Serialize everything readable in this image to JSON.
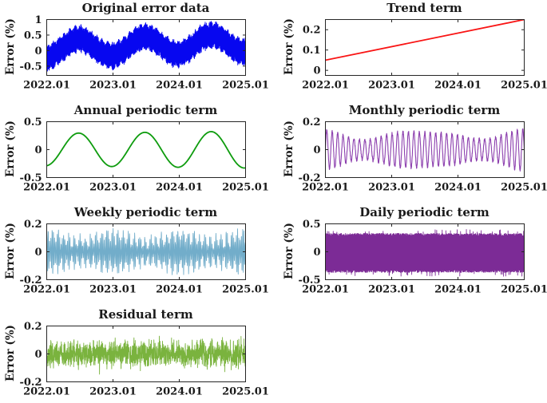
{
  "figure": {
    "ylabel": "Error (%)",
    "axis_color": "#262626",
    "text_color": "#1a1a1a",
    "background": "#ffffff",
    "x_tick_labels": [
      "2022.01",
      "2023.01",
      "2024.01",
      "2025.01"
    ]
  },
  "chart_data": [
    {
      "type": "line",
      "title": "Original error data",
      "ylabel": "Error (%)",
      "color": "#0707f0",
      "xlim": [
        2022.01,
        2025.01
      ],
      "ylim": [
        -0.8,
        1.0
      ],
      "xticks": {
        "labels": [
          "2022.01",
          "2023.01",
          "2024.01",
          "2025.01"
        ],
        "values": [
          2022.01,
          2023.01,
          2024.01,
          2025.01
        ]
      },
      "yticks": [
        {
          "label": "1",
          "v": 1
        },
        {
          "label": "0.5",
          "v": 0.5
        },
        {
          "label": "0",
          "v": 0
        },
        {
          "label": "-0.5",
          "v": -0.5
        }
      ],
      "grid": false,
      "legend": null,
      "description": "Annual sinusoid (about +/-0.3) plus dense high-frequency band (+/-0.3 to 0.45) on a rising mean 0.05 to 0.25; envelope peaks near 1.0 mid-year, lows near -0.75 each January",
      "signal": {
        "kind": "sum-zigzag",
        "samples": 1400,
        "seed": 7,
        "trend": [
          0.05,
          0.25
        ],
        "annual_amp": 0.29,
        "annual_phase": 0.23,
        "e0": 0.28,
        "e1": 0.14,
        "emod": 0.05
      }
    },
    {
      "type": "line",
      "title": "Trend term",
      "ylabel": "Error (%)",
      "color": "#f91414",
      "xlim": [
        2022.01,
        2025.01
      ],
      "ylim": [
        -0.025,
        0.25
      ],
      "xticks": {
        "labels": [
          "2022.01",
          "2023.01",
          "2024.01",
          "2025.01"
        ],
        "values": [
          2022.01,
          2023.01,
          2024.01,
          2025.01
        ]
      },
      "yticks": [
        {
          "label": "0.2",
          "v": 0.2
        },
        {
          "label": "0.1",
          "v": 0.1
        },
        {
          "label": "0",
          "v": 0
        }
      ],
      "grid": false,
      "legend": null,
      "description": "Straight line rising from about 0.05 at 2022.01 to about 0.25 at 2025.01",
      "signal": {
        "kind": "linear",
        "samples": 2,
        "y0": 0.05,
        "y1": 0.25
      }
    },
    {
      "type": "line",
      "title": "Annual periodic term",
      "ylabel": "Error (%)",
      "color": "#0e9c0e",
      "xlim": [
        2022.01,
        2025.01
      ],
      "ylim": [
        -0.5,
        0.5
      ],
      "xticks": {
        "labels": [
          "2022.01",
          "2023.01",
          "2024.01",
          "2025.01"
        ],
        "values": [
          2022.01,
          2023.01,
          2024.01,
          2025.01
        ]
      },
      "yticks": [
        {
          "label": "0.5",
          "v": 0.5
        },
        {
          "label": "0",
          "v": 0
        },
        {
          "label": "-0.5",
          "v": -0.5
        }
      ],
      "grid": false,
      "legend": null,
      "description": "Smooth one-year-period sine, peaks about +0.27/+0.30/+0.32 mid-year, troughs about -0.33 each January, starting near -0.3",
      "signal": {
        "kind": "sine",
        "samples": 400,
        "amp": 0.29,
        "amp_growth": 0.013,
        "phase": 0.23,
        "freq": 1
      }
    },
    {
      "type": "line",
      "title": "Monthly periodic term",
      "ylabel": "Error (%)",
      "color": "#8c3fae",
      "xlim": [
        2022.01,
        2025.01
      ],
      "ylim": [
        -0.2,
        0.2
      ],
      "xticks": {
        "labels": [
          "2022.01",
          "2023.01",
          "2024.01",
          "2025.01"
        ],
        "values": [
          2022.01,
          2023.01,
          2024.01,
          2025.01
        ]
      },
      "yticks": [
        {
          "label": "0.2",
          "v": 0.2
        },
        {
          "label": "0",
          "v": 0
        },
        {
          "label": "-0.2",
          "v": -0.2
        }
      ],
      "grid": false,
      "legend": null,
      "description": "About 36 oscillations over 3 years (monthly period); amplitude modulated between roughly 0.08 and 0.15, largest near 2022.7 and 2024.3",
      "signal": {
        "kind": "am-sine",
        "samples": 1500,
        "seed": 21,
        "a0": 0.108,
        "a1": 0.028,
        "mod_freq": 0.625,
        "mod_phase": 2.2,
        "a2": 0.012,
        "freq": 12.17,
        "noise": 0.01
      }
    },
    {
      "type": "line",
      "title": "Weekly periodic term",
      "ylabel": "Error (%)",
      "color": "#72adca",
      "xlim": [
        2022.01,
        2025.01
      ],
      "ylim": [
        -0.2,
        0.2
      ],
      "xticks": {
        "labels": [
          "2022.01",
          "2023.01",
          "2024.01",
          "2025.01"
        ],
        "values": [
          2022.01,
          2023.01,
          2024.01,
          2025.01
        ]
      },
      "yticks": [
        {
          "label": "0.2",
          "v": 0.2
        },
        {
          "label": "0",
          "v": 0
        },
        {
          "label": "-0.2",
          "v": -0.2
        }
      ],
      "grid": false,
      "legend": null,
      "description": "Dense weekly-period comb; spike envelope varies roughly 0.05 to 0.18, larger near the start and end of the span, smaller mid-2023",
      "signal": {
        "kind": "am-sine",
        "samples": 1600,
        "seed": 33,
        "a0": 0.088,
        "a1": 0.045,
        "mod_freq": 12.2,
        "mod_phase": 0.8,
        "a2": 0.022,
        "freq": 52.18,
        "noise": 0.025
      }
    },
    {
      "type": "line",
      "title": "Daily periodic term",
      "ylabel": "Error (%)",
      "color": "#7c2b96",
      "xlim": [
        2022.01,
        2025.01
      ],
      "ylim": [
        -0.5,
        0.5
      ],
      "xticks": {
        "labels": [
          "2022.01",
          "2023.01",
          "2024.01",
          "2025.01"
        ],
        "values": [
          2022.01,
          2023.01,
          2024.01,
          2025.01
        ]
      },
      "yticks": [
        {
          "label": "0.5",
          "v": 0.5
        },
        {
          "label": "0",
          "v": 0
        },
        {
          "label": "-0.5",
          "v": -0.5
        }
      ],
      "grid": false,
      "legend": null,
      "description": "Solid dense band of daily oscillations spanning roughly +0.33 to -0.36 with occasional spikes toward +/-0.43",
      "signal": {
        "kind": "zigzag",
        "samples": 1300,
        "seed": 41,
        "center": -0.02,
        "e0": 0.3,
        "e1": 0.05,
        "spike_p": 0.04,
        "spike": 0.07
      }
    },
    {
      "type": "line",
      "title": "Residual term",
      "ylabel": "Error (%)",
      "color": "#7ab33e",
      "xlim": [
        2022.01,
        2025.01
      ],
      "ylim": [
        -0.2,
        0.2
      ],
      "xticks": {
        "labels": [
          "2022.01",
          "2023.01",
          "2024.01",
          "2025.01"
        ],
        "values": [
          2022.01,
          2023.01,
          2024.01,
          2025.01
        ]
      },
      "yticks": [
        {
          "label": "0.2",
          "v": 0.2
        },
        {
          "label": "0",
          "v": 0
        },
        {
          "label": "-0.2",
          "v": -0.2
        }
      ],
      "grid": false,
      "legend": null,
      "description": "Zero-mean noise band, core about +/-0.08 with occasional spikes to about +/-0.15",
      "signal": {
        "kind": "noise",
        "samples": 1500,
        "seed": 55,
        "scale": 0.09,
        "spike_p": 0.012,
        "spike": 0.05
      }
    }
  ]
}
